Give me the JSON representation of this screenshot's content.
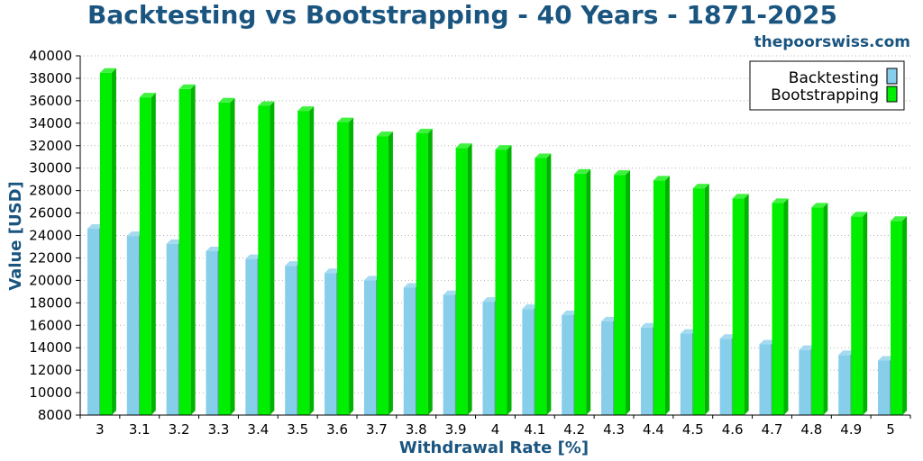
{
  "chart_data": {
    "type": "bar",
    "title": "Backtesting vs Bootstrapping - 40 Years - 1871-2025",
    "source": "thepoorswiss.com",
    "xlabel": "Withdrawal Rate [%]",
    "ylabel": "Value [USD]",
    "ylim": [
      8000,
      40000
    ],
    "yticks": [
      8000,
      10000,
      12000,
      14000,
      16000,
      18000,
      20000,
      22000,
      24000,
      26000,
      28000,
      30000,
      32000,
      34000,
      36000,
      38000,
      40000
    ],
    "grid": true,
    "legend_position": "top-right",
    "categories": [
      "3",
      "3.1",
      "3.2",
      "3.3",
      "3.4",
      "3.5",
      "3.6",
      "3.7",
      "3.8",
      "3.9",
      "4",
      "4.1",
      "4.2",
      "4.3",
      "4.4",
      "4.5",
      "4.6",
      "4.7",
      "4.8",
      "4.9",
      "5"
    ],
    "series": [
      {
        "name": "Backtesting",
        "color": "#87ceeb",
        "values": [
          24600,
          23950,
          23250,
          22600,
          21900,
          21300,
          20650,
          20000,
          19350,
          18700,
          18100,
          17450,
          16900,
          16350,
          15800,
          15250,
          14800,
          14300,
          13800,
          13350,
          12850
        ]
      },
      {
        "name": "Bootstrapping",
        "color": "#00ee00",
        "values": [
          38500,
          36300,
          37050,
          35850,
          35550,
          35100,
          34100,
          32850,
          33100,
          31800,
          31650,
          30900,
          29500,
          29400,
          28900,
          28200,
          27300,
          26900,
          26500,
          25700,
          25300
        ]
      }
    ]
  }
}
